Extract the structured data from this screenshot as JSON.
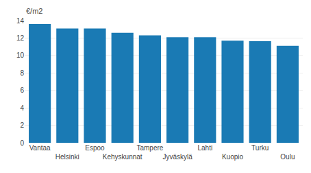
{
  "chart_data": {
    "type": "bar",
    "ylabel": "€/m2",
    "categories": [
      "Vantaa",
      "Helsinki",
      "Espoo",
      "Kehyskunnat",
      "Tampere",
      "Jyväskylä",
      "Lahti",
      "Kuopio",
      "Turku",
      "Oulu"
    ],
    "values": [
      13.6,
      13.1,
      13.1,
      12.6,
      12.3,
      12.1,
      12.1,
      11.7,
      11.65,
      11.1
    ],
    "color": "#1a7ab4",
    "ylim": [
      0,
      14
    ],
    "yticks": [
      0,
      2,
      4,
      6,
      8,
      10,
      12,
      14
    ],
    "grid": true
  }
}
